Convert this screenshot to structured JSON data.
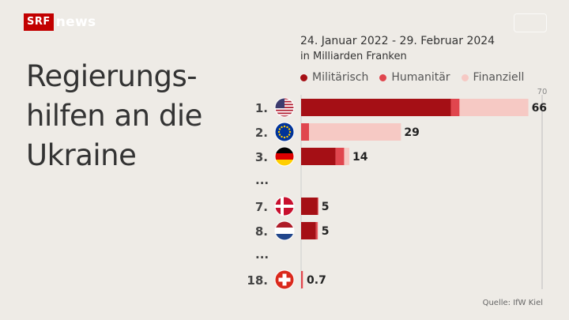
{
  "branding": {
    "logo_box": "SRF",
    "logo_text": "news"
  },
  "headline": [
    "Regierungs-",
    "hilfen an die",
    "Ukraine"
  ],
  "subtitle": {
    "date_range": "24. Januar 2022 - 29. Februar 2024",
    "unit": "in Milliarden Franken"
  },
  "source": "Quelle: IfW Kiel",
  "colors": {
    "background": "#eeebe6",
    "military": "#a50f15",
    "humanitarian": "#e0464e",
    "financial": "#f6c9c4",
    "gridline": "#bdbdbd"
  },
  "chart_data": {
    "type": "bar",
    "orientation": "horizontal",
    "stacked": true,
    "xlim": [
      0,
      70
    ],
    "xticks": [
      70
    ],
    "legend_position": "top",
    "series": [
      {
        "name": "Militärisch",
        "color": "#a50f15"
      },
      {
        "name": "Humanitär",
        "color": "#e0464e"
      },
      {
        "name": "Finanziell",
        "color": "#f6c9c4"
      }
    ],
    "rows": [
      {
        "rank": "1.",
        "country_icon": "usa-flag-icon",
        "military": 43.5,
        "humanitarian": 2.5,
        "financial": 20.0,
        "total_label": "66"
      },
      {
        "rank": "2.",
        "country_icon": "eu-flag-icon",
        "military": 0.0,
        "humanitarian": 2.3,
        "financial": 26.7,
        "total_label": "29"
      },
      {
        "rank": "3.",
        "country_icon": "germany-flag-icon",
        "military": 10.0,
        "humanitarian": 2.5,
        "financial": 1.5,
        "total_label": "14"
      },
      {
        "ellipsis": "..."
      },
      {
        "rank": "7.",
        "country_icon": "denmark-flag-icon",
        "military": 4.8,
        "humanitarian": 0.2,
        "financial": 0.0,
        "total_label": "5"
      },
      {
        "rank": "8.",
        "country_icon": "netherlands-flag-icon",
        "military": 4.3,
        "humanitarian": 0.5,
        "financial": 0.2,
        "total_label": "5"
      },
      {
        "ellipsis": "..."
      },
      {
        "rank": "18.",
        "country_icon": "switzerland-flag-icon",
        "military": 0.0,
        "humanitarian": 0.5,
        "financial": 0.2,
        "total_label": "0.7"
      }
    ]
  }
}
